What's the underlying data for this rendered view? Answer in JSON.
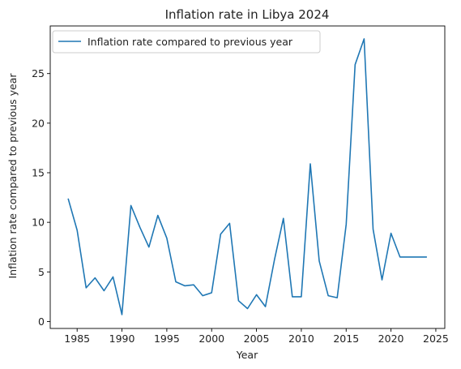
{
  "chart_data": {
    "type": "line",
    "title": "Inflation rate in Libya 2024",
    "xlabel": "Year",
    "ylabel": "Inflation rate compared to previous year",
    "xlim": [
      1982,
      2026
    ],
    "ylim": [
      -0.7,
      29.8
    ],
    "xticks": [
      1985,
      1990,
      1995,
      2000,
      2005,
      2010,
      2015,
      2020,
      2025
    ],
    "yticks": [
      0,
      5,
      10,
      15,
      20,
      25
    ],
    "grid": false,
    "legend_position": "upper left",
    "colors": {
      "series": "#1f77b4"
    },
    "series": [
      {
        "name": "Inflation rate compared to previous year",
        "x": [
          1984,
          1985,
          1986,
          1987,
          1988,
          1989,
          1990,
          1991,
          1992,
          1993,
          1994,
          1995,
          1996,
          1997,
          1998,
          1999,
          2000,
          2001,
          2002,
          2003,
          2004,
          2005,
          2006,
          2007,
          2008,
          2009,
          2010,
          2011,
          2012,
          2013,
          2014,
          2015,
          2016,
          2017,
          2018,
          2019,
          2020,
          2021,
          2022,
          2023,
          2024
        ],
        "values": [
          12.4,
          9.2,
          3.4,
          4.4,
          3.1,
          4.5,
          0.7,
          11.7,
          9.5,
          7.5,
          10.7,
          8.4,
          4.0,
          3.6,
          3.7,
          2.6,
          2.9,
          8.8,
          9.9,
          2.1,
          1.3,
          2.7,
          1.5,
          6.2,
          10.4,
          2.5,
          2.5,
          15.9,
          6.1,
          2.6,
          2.4,
          9.8,
          25.9,
          28.5,
          9.3,
          4.2,
          8.9,
          6.5,
          6.5,
          6.5,
          6.5
        ]
      }
    ]
  }
}
